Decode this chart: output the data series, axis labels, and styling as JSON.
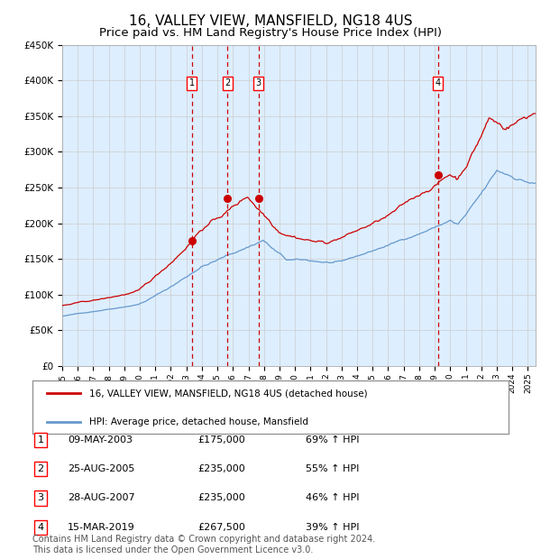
{
  "title": "16, VALLEY VIEW, MANSFIELD, NG18 4US",
  "subtitle": "Price paid vs. HM Land Registry's House Price Index (HPI)",
  "title_fontsize": 11,
  "subtitle_fontsize": 9.5,
  "legend_line1": "16, VALLEY VIEW, MANSFIELD, NG18 4US (detached house)",
  "legend_line2": "HPI: Average price, detached house, Mansfield",
  "sales": [
    {
      "num": 1,
      "date_label": "09-MAY-2003",
      "date_x": 2003.35,
      "price": 175000,
      "pct": "69%",
      "dir": "↑"
    },
    {
      "num": 2,
      "date_label": "25-AUG-2005",
      "date_x": 2005.65,
      "price": 235000,
      "pct": "55%",
      "dir": "↑"
    },
    {
      "num": 3,
      "date_label": "28-AUG-2007",
      "date_x": 2007.65,
      "price": 235000,
      "pct": "46%",
      "dir": "↑"
    },
    {
      "num": 4,
      "date_label": "15-MAR-2019",
      "date_x": 2019.2,
      "price": 267500,
      "pct": "39%",
      "dir": "↑"
    }
  ],
  "hpi_line_color": "#6699cc",
  "property_line_color": "#cc0000",
  "sale_marker_color": "#cc0000",
  "vline_color": "#cc0000",
  "background_color": "#ddeeff",
  "grid_color": "#cccccc",
  "ylim": [
    0,
    450000
  ],
  "xlim_min": 1995,
  "xlim_max": 2025.5,
  "yticks": [
    0,
    50000,
    100000,
    150000,
    200000,
    250000,
    300000,
    350000,
    400000,
    450000
  ],
  "footnote": "Contains HM Land Registry data © Crown copyright and database right 2024.\nThis data is licensed under the Open Government Licence v3.0.",
  "footnote_fontsize": 7
}
